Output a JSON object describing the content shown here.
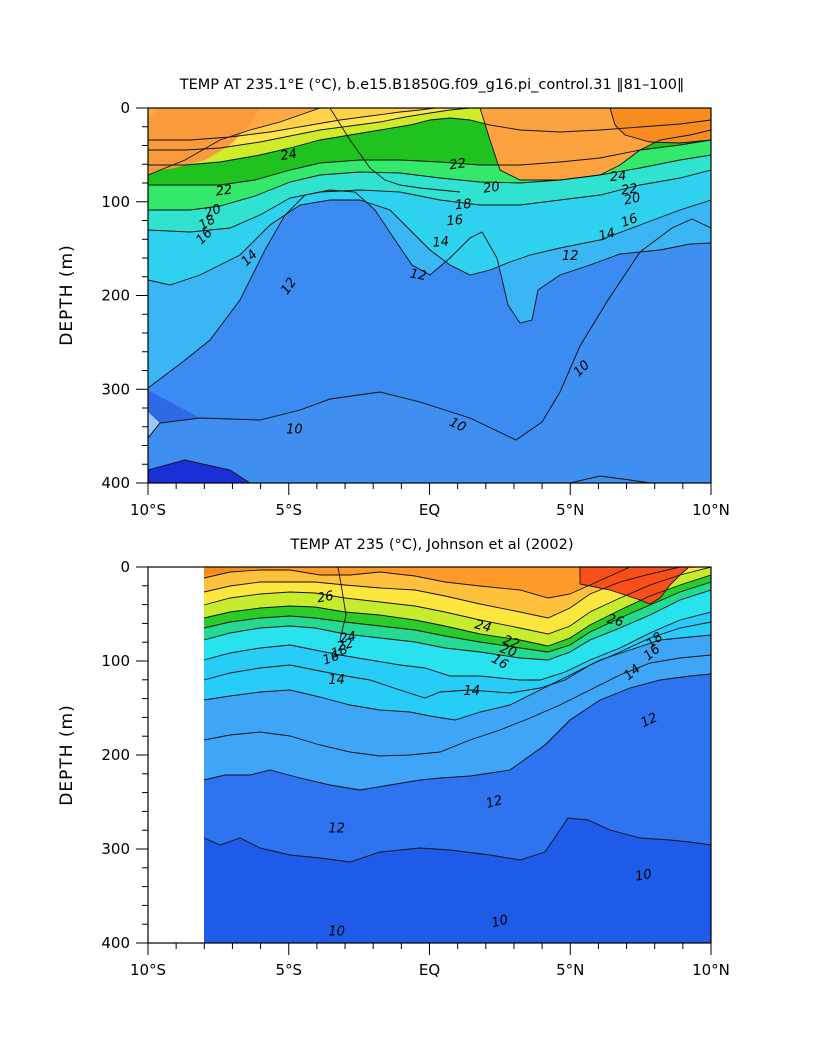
{
  "chart_data": [
    {
      "type": "heatmap",
      "subtype": "filled-contour",
      "title": "TEMP AT 235.1°E (°C), b.e15.B1850G.f09_g16.pi_control.31 ‖81–100‖",
      "xlabel": "",
      "ylabel": "DEPTH (m)",
      "xlim": [
        -10,
        10
      ],
      "ylim": [
        400,
        0
      ],
      "x_ticks": [
        -10,
        -5,
        0,
        5,
        10
      ],
      "x_tick_labels": [
        "10°S",
        "5°S",
        "EQ",
        "5°N",
        "10°N"
      ],
      "y_ticks": [
        0,
        100,
        200,
        300,
        400
      ],
      "y_tick_labels": [
        "0",
        "100",
        "200",
        "300",
        "400"
      ],
      "data_extent_x": [
        -10,
        10
      ],
      "contour_interval": 1,
      "labeled_isotherms": [
        {
          "text": "24",
          "value": 24,
          "x": -5.0,
          "y": 50,
          "angle": -10
        },
        {
          "text": "22",
          "value": 22,
          "x": -7.3,
          "y": 88,
          "angle": -8
        },
        {
          "text": "20",
          "value": 20,
          "x": -7.7,
          "y": 110,
          "angle": -20
        },
        {
          "text": "18",
          "value": 18,
          "x": -7.9,
          "y": 122,
          "angle": -30
        },
        {
          "text": "16",
          "value": 16,
          "x": -8.0,
          "y": 137,
          "angle": -45
        },
        {
          "text": "14",
          "value": 14,
          "x": -6.4,
          "y": 160,
          "angle": -45
        },
        {
          "text": "12",
          "value": 12,
          "x": -5.0,
          "y": 190,
          "angle": -55
        },
        {
          "text": "22",
          "value": 22,
          "x": 1.0,
          "y": 60,
          "angle": -8
        },
        {
          "text": "20",
          "value": 20,
          "x": 2.2,
          "y": 85,
          "angle": -8
        },
        {
          "text": "18",
          "value": 18,
          "x": 1.2,
          "y": 103,
          "angle": -5
        },
        {
          "text": "16",
          "value": 16,
          "x": 0.9,
          "y": 120,
          "angle": -5
        },
        {
          "text": "14",
          "value": 14,
          "x": 0.4,
          "y": 143,
          "angle": -5
        },
        {
          "text": "12",
          "value": 12,
          "x": -0.4,
          "y": 178,
          "angle": 10
        },
        {
          "text": "24",
          "value": 24,
          "x": 6.7,
          "y": 73,
          "angle": -5
        },
        {
          "text": "22",
          "value": 22,
          "x": 7.1,
          "y": 87,
          "angle": -8
        },
        {
          "text": "20",
          "value": 20,
          "x": 7.2,
          "y": 97,
          "angle": -12
        },
        {
          "text": "16",
          "value": 16,
          "x": 7.1,
          "y": 120,
          "angle": -20
        },
        {
          "text": "14",
          "value": 14,
          "x": 6.3,
          "y": 135,
          "angle": -15
        },
        {
          "text": "12",
          "value": 12,
          "x": 5.0,
          "y": 158,
          "angle": 0
        },
        {
          "text": "10",
          "value": 10,
          "x": 5.4,
          "y": 278,
          "angle": -45
        },
        {
          "text": "10",
          "value": 10,
          "x": -4.8,
          "y": 343,
          "angle": 0
        },
        {
          "text": "10",
          "value": 10,
          "x": 1.0,
          "y": 338,
          "angle": 25
        }
      ]
    },
    {
      "type": "heatmap",
      "subtype": "filled-contour",
      "title": "TEMP AT 235 (°C), Johnson et al (2002)",
      "xlabel": "",
      "ylabel": "DEPTH (m)",
      "xlim": [
        -10,
        10
      ],
      "ylim": [
        400,
        0
      ],
      "x_ticks": [
        -10,
        -5,
        0,
        5,
        10
      ],
      "x_tick_labels": [
        "10°S",
        "5°S",
        "EQ",
        "5°N",
        "10°N"
      ],
      "y_ticks": [
        0,
        100,
        200,
        300,
        400
      ],
      "y_tick_labels": [
        "0",
        "100",
        "200",
        "300",
        "400"
      ],
      "data_extent_x": [
        -8,
        10
      ],
      "contour_interval": 1,
      "labeled_isotherms": [
        {
          "text": "26",
          "value": 26,
          "x": -3.7,
          "y": 32,
          "angle": -10
        },
        {
          "text": "24",
          "value": 24,
          "x": -2.9,
          "y": 75,
          "angle": -10
        },
        {
          "text": "22",
          "value": 22,
          "x": -3.0,
          "y": 83,
          "angle": -15
        },
        {
          "text": "18",
          "value": 18,
          "x": -3.2,
          "y": 90,
          "angle": -20
        },
        {
          "text": "16",
          "value": 16,
          "x": -3.5,
          "y": 97,
          "angle": -20
        },
        {
          "text": "14",
          "value": 14,
          "x": -3.3,
          "y": 120,
          "angle": 0
        },
        {
          "text": "24",
          "value": 24,
          "x": 1.9,
          "y": 63,
          "angle": 15
        },
        {
          "text": "22",
          "value": 22,
          "x": 2.9,
          "y": 80,
          "angle": 20
        },
        {
          "text": "20",
          "value": 20,
          "x": 2.8,
          "y": 89,
          "angle": 20
        },
        {
          "text": "16",
          "value": 16,
          "x": 2.5,
          "y": 101,
          "angle": 30
        },
        {
          "text": "14",
          "value": 14,
          "x": 1.5,
          "y": 132,
          "angle": 0
        },
        {
          "text": "26",
          "value": 26,
          "x": 6.6,
          "y": 57,
          "angle": 15
        },
        {
          "text": "18",
          "value": 18,
          "x": 8.0,
          "y": 78,
          "angle": -40
        },
        {
          "text": "16",
          "value": 16,
          "x": 7.9,
          "y": 91,
          "angle": -40
        },
        {
          "text": "14",
          "value": 14,
          "x": 7.2,
          "y": 112,
          "angle": -40
        },
        {
          "text": "12",
          "value": 12,
          "x": 7.8,
          "y": 163,
          "angle": -25
        },
        {
          "text": "12",
          "value": 12,
          "x": 2.3,
          "y": 250,
          "angle": -15
        },
        {
          "text": "12",
          "value": 12,
          "x": -3.3,
          "y": 278,
          "angle": 0
        },
        {
          "text": "10",
          "value": 10,
          "x": 7.6,
          "y": 328,
          "angle": -10
        },
        {
          "text": "10",
          "value": 10,
          "x": 2.5,
          "y": 377,
          "angle": -15
        },
        {
          "text": "10",
          "value": 10,
          "x": -3.3,
          "y": 388,
          "angle": 0
        }
      ]
    }
  ]
}
